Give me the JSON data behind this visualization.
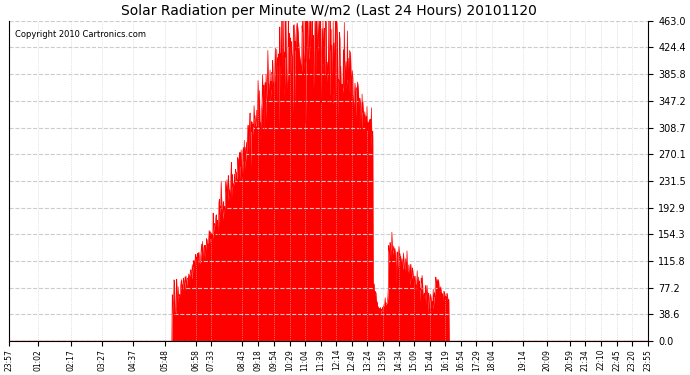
{
  "title": "Solar Radiation per Minute W/m2 (Last 24 Hours) 20101120",
  "copyright": "Copyright 2010 Cartronics.com",
  "background_color": "#ffffff",
  "plot_background": "#ffffff",
  "bar_color": "#ff0000",
  "dashed_line_color": "#cccccc",
  "zero_line_color": "#ff0000",
  "ytick_labels": [
    "0.0",
    "38.6",
    "77.2",
    "115.8",
    "154.3",
    "192.9",
    "231.5",
    "270.1",
    "308.7",
    "347.2",
    "385.8",
    "424.4",
    "463.0"
  ],
  "ytick_values": [
    0.0,
    38.6,
    77.2,
    115.8,
    154.3,
    "192.9",
    231.5,
    270.1,
    308.7,
    347.2,
    385.8,
    424.4,
    463.0
  ],
  "ymax": 463.0,
  "ymin": 0.0,
  "xtick_labels": [
    "23:57",
    "01:02",
    "02:17",
    "03:27",
    "04:37",
    "05:48",
    "06:58",
    "07:33",
    "08:43",
    "09:18",
    "09:54",
    "10:29",
    "11:04",
    "11:39",
    "12:14",
    "12:49",
    "13:24",
    "13:59",
    "14:34",
    "15:09",
    "15:44",
    "16:19",
    "16:54",
    "17:29",
    "18:04",
    "19:14",
    "20:09",
    "20:59",
    "21:34",
    "22:10",
    "22:45",
    "23:20",
    "23:55"
  ]
}
